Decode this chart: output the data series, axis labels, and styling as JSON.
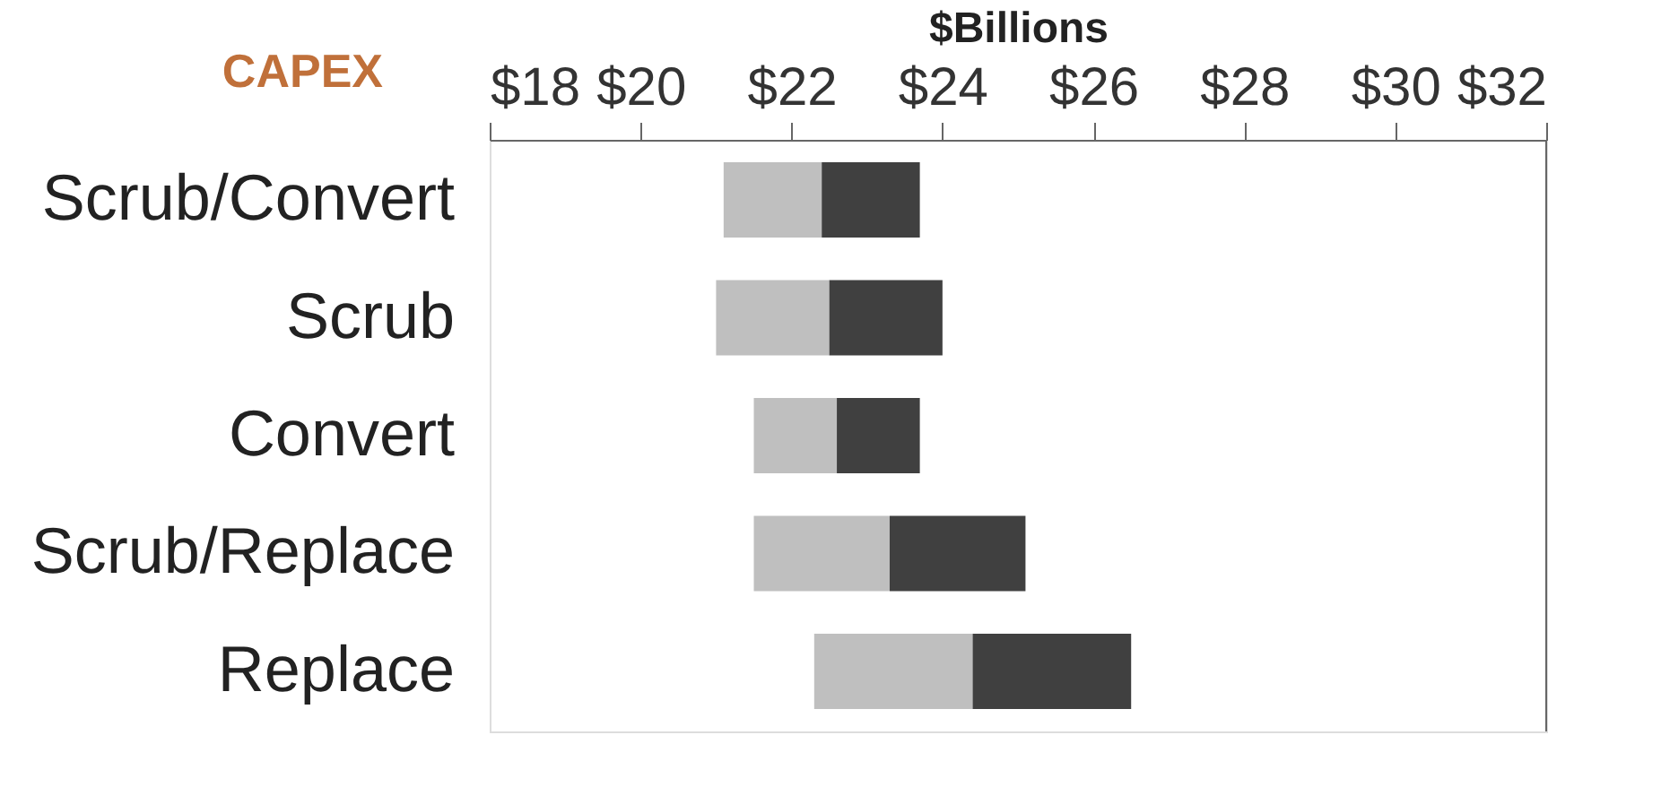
{
  "chart_data": {
    "type": "bar",
    "orientation": "horizontal",
    "ylabel": "CAPEX",
    "xlabel": "$Billions",
    "categories": [
      "Scrub/Convert",
      "Scrub",
      "Convert",
      "Scrub/Replace",
      "Replace"
    ],
    "series": [
      {
        "color": "#bfbfbf",
        "base": [
          21.1,
          21.0,
          21.5,
          21.5,
          22.3
        ],
        "values": [
          1.3,
          1.5,
          1.1,
          1.8,
          2.1
        ]
      },
      {
        "color": "#404040",
        "base": [
          22.4,
          22.5,
          22.6,
          23.3,
          24.4
        ],
        "values": [
          1.3,
          1.5,
          1.1,
          1.8,
          2.1
        ]
      }
    ],
    "xlim": [
      18,
      32
    ],
    "xticks": [
      {
        "value": 18,
        "label": "$18"
      },
      {
        "value": 20,
        "label": "$20"
      },
      {
        "value": 22,
        "label": "$22"
      },
      {
        "value": 24,
        "label": "$24"
      },
      {
        "value": 26,
        "label": "$26"
      },
      {
        "value": 28,
        "label": "$28"
      },
      {
        "value": 30,
        "label": "$30"
      },
      {
        "value": 32,
        "label": "$32"
      }
    ],
    "grid": false
  }
}
